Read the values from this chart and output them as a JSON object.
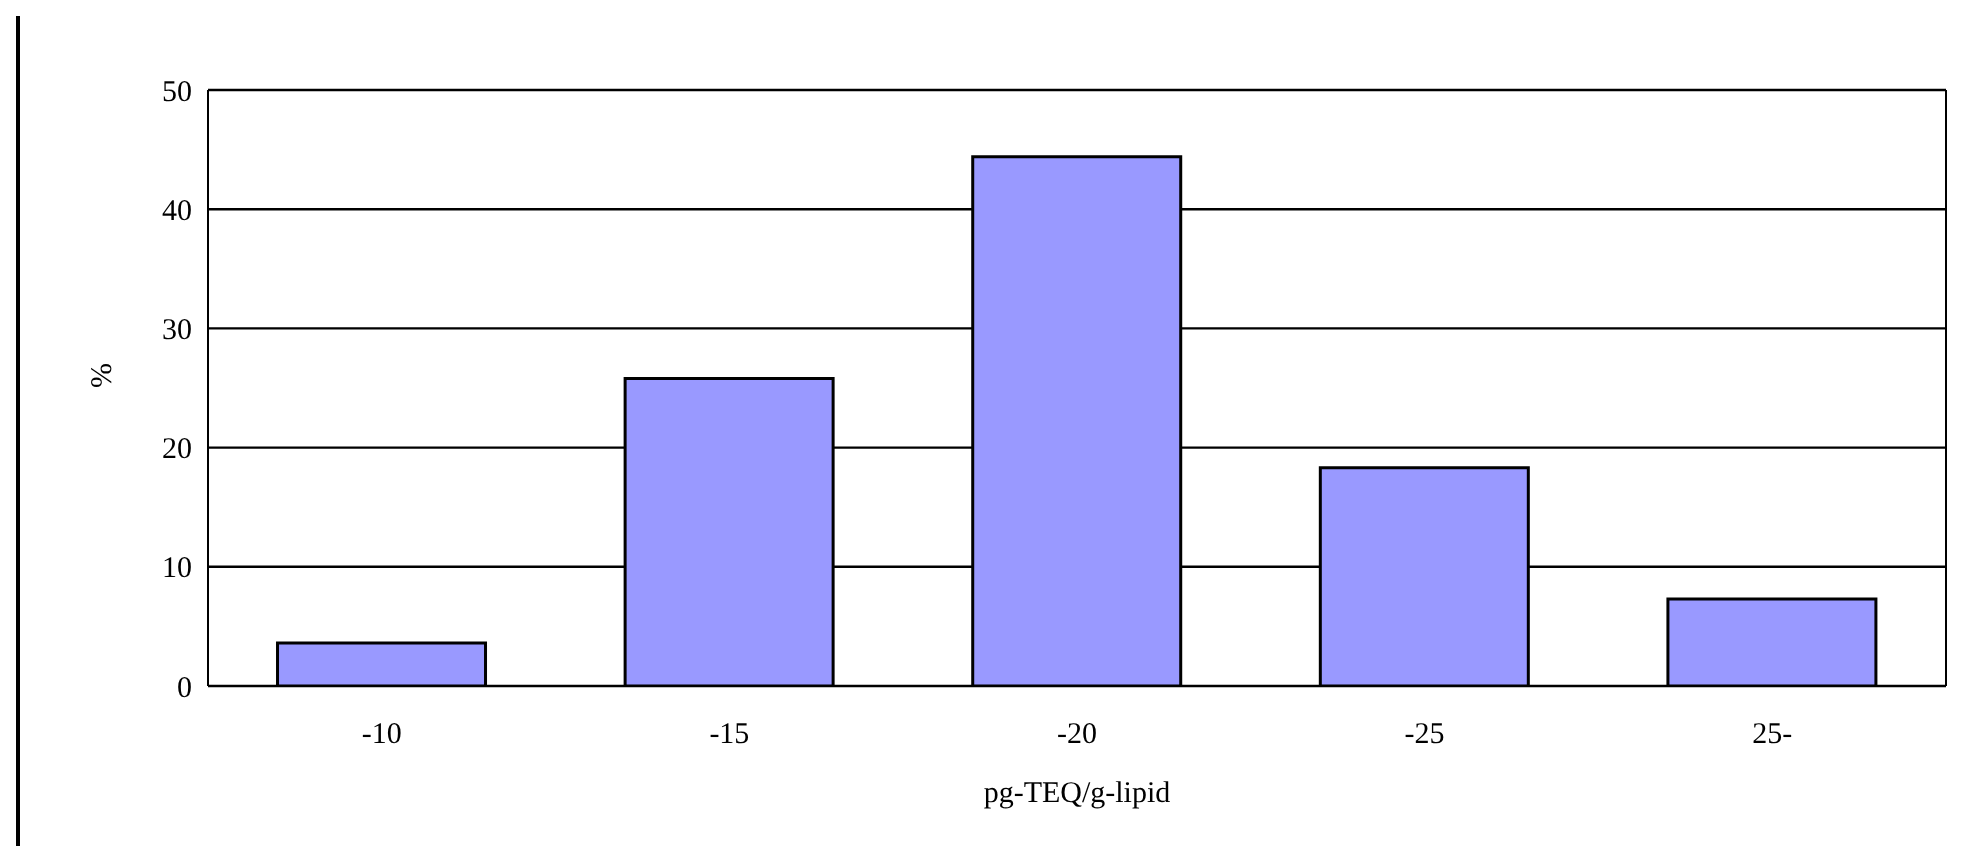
{
  "chart_data": {
    "type": "bar",
    "xlabel": "pg-TEQ/g-lipid",
    "ylabel": "%",
    "categories": [
      "-10",
      "-15",
      "-20",
      "-25",
      "25-"
    ],
    "values": [
      3.6,
      25.8,
      44.4,
      18.3,
      7.3
    ],
    "color": "#9999ff",
    "ylim": [
      0,
      50
    ],
    "yticks": [
      0,
      10,
      20,
      30,
      40,
      50
    ],
    "grid": "y"
  }
}
